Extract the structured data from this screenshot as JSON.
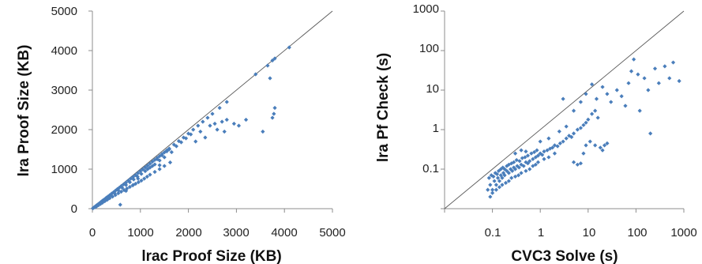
{
  "colors": {
    "marker": "#4a7ebb",
    "axis": "#8c8c8c",
    "diagonal": "#595959",
    "text": "#222222"
  },
  "chart_data": [
    {
      "type": "scatter",
      "xlabel": "lrac Proof Size (KB)",
      "ylabel": "lra Proof Size (KB)",
      "xlim": [
        0,
        5000
      ],
      "ylim": [
        0,
        5000
      ],
      "x_ticks": [
        "0",
        "1000",
        "2000",
        "3000",
        "4000",
        "5000"
      ],
      "y_ticks": [
        "0",
        "1000",
        "2000",
        "3000",
        "4000",
        "5000"
      ],
      "scale": "linear",
      "grid": false,
      "legend": "none",
      "reference_line": "y = x",
      "points": [
        [
          10,
          10
        ],
        [
          25,
          22
        ],
        [
          40,
          38
        ],
        [
          55,
          50
        ],
        [
          70,
          65
        ],
        [
          85,
          80
        ],
        [
          100,
          95
        ],
        [
          120,
          112
        ],
        [
          140,
          130
        ],
        [
          160,
          150
        ],
        [
          180,
          170
        ],
        [
          200,
          190
        ],
        [
          220,
          210
        ],
        [
          250,
          235
        ],
        [
          280,
          265
        ],
        [
          300,
          285
        ],
        [
          330,
          310
        ],
        [
          360,
          340
        ],
        [
          400,
          380
        ],
        [
          440,
          415
        ],
        [
          480,
          455
        ],
        [
          520,
          495
        ],
        [
          560,
          530
        ],
        [
          600,
          570
        ],
        [
          650,
          615
        ],
        [
          700,
          660
        ],
        [
          750,
          710
        ],
        [
          800,
          760
        ],
        [
          850,
          805
        ],
        [
          900,
          850
        ],
        [
          950,
          900
        ],
        [
          1000,
          950
        ],
        [
          1050,
          995
        ],
        [
          1100,
          1045
        ],
        [
          1150,
          1090
        ],
        [
          1200,
          1140
        ],
        [
          1250,
          1190
        ],
        [
          1300,
          1235
        ],
        [
          1350,
          1285
        ],
        [
          1400,
          1330
        ],
        [
          1450,
          1380
        ],
        [
          1500,
          1425
        ],
        [
          1550,
          1475
        ],
        [
          1600,
          1520
        ],
        [
          1700,
          1620
        ],
        [
          1800,
          1710
        ],
        [
          1900,
          1800
        ],
        [
          2000,
          1900
        ],
        [
          2100,
          2000
        ],
        [
          2200,
          2100
        ],
        [
          2300,
          2200
        ],
        [
          2400,
          2300
        ],
        [
          2500,
          2400
        ],
        [
          2650,
          2550
        ],
        [
          2800,
          2700
        ],
        [
          3400,
          3400
        ],
        [
          3650,
          3620
        ],
        [
          3750,
          3750
        ],
        [
          3800,
          3800
        ],
        [
          4100,
          4080
        ],
        [
          60,
          40
        ],
        [
          90,
          60
        ],
        [
          130,
          90
        ],
        [
          170,
          120
        ],
        [
          210,
          150
        ],
        [
          260,
          190
        ],
        [
          310,
          225
        ],
        [
          360,
          265
        ],
        [
          420,
          305
        ],
        [
          480,
          345
        ],
        [
          540,
          390
        ],
        [
          600,
          430
        ],
        [
          660,
          470
        ],
        [
          720,
          510
        ],
        [
          780,
          550
        ],
        [
          840,
          590
        ],
        [
          900,
          630
        ],
        [
          960,
          670
        ],
        [
          1020,
          710
        ],
        [
          1080,
          760
        ],
        [
          1140,
          810
        ],
        [
          1200,
          860
        ],
        [
          1300,
          930
        ],
        [
          1400,
          1000
        ],
        [
          1500,
          1080
        ],
        [
          1620,
          1170
        ],
        [
          80,
          70
        ],
        [
          130,
          115
        ],
        [
          190,
          165
        ],
        [
          250,
          215
        ],
        [
          320,
          275
        ],
        [
          390,
          335
        ],
        [
          460,
          395
        ],
        [
          540,
          460
        ],
        [
          620,
          530
        ],
        [
          700,
          600
        ],
        [
          780,
          670
        ],
        [
          860,
          740
        ],
        [
          940,
          810
        ],
        [
          1020,
          880
        ],
        [
          1100,
          950
        ],
        [
          1200,
          1040
        ],
        [
          1300,
          1120
        ],
        [
          1400,
          1220
        ],
        [
          1500,
          1300
        ],
        [
          1650,
          1430
        ],
        [
          1750,
          1580
        ],
        [
          1850,
          1680
        ],
        [
          1950,
          1780
        ],
        [
          2050,
          1880
        ],
        [
          2150,
          1700
        ],
        [
          2250,
          1950
        ],
        [
          2350,
          1800
        ],
        [
          2450,
          2100
        ],
        [
          2550,
          2150
        ],
        [
          2700,
          2200
        ],
        [
          2800,
          2250
        ],
        [
          2950,
          2150
        ],
        [
          3050,
          2100
        ],
        [
          3200,
          2250
        ],
        [
          3550,
          1950
        ],
        [
          3700,
          3300
        ],
        [
          3750,
          2300
        ],
        [
          3780,
          2400
        ],
        [
          3800,
          2550
        ],
        [
          2600,
          2000
        ],
        [
          2750,
          1950
        ],
        [
          1550,
          1450
        ],
        [
          1600,
          1500
        ],
        [
          1450,
          1350
        ],
        [
          1400,
          1100
        ],
        [
          1350,
          1250
        ],
        [
          580,
          100
        ],
        [
          700,
          450
        ],
        [
          850,
          600
        ],
        [
          950,
          760
        ],
        [
          1150,
          1000
        ],
        [
          1250,
          1080
        ]
      ]
    },
    {
      "type": "scatter",
      "xlabel": "CVC3 Solve (s)",
      "ylabel": "lra Pf Check (s)",
      "xlim": [
        0.01,
        1000
      ],
      "ylim": [
        0.01,
        1000
      ],
      "x_ticks": [
        "0.1",
        "1",
        "10",
        "100",
        "1000"
      ],
      "y_ticks": [
        "0.1",
        "1",
        "10",
        "100",
        "1000"
      ],
      "scale": "log",
      "grid": false,
      "legend": "none",
      "reference_line": "y = x",
      "points": [
        [
          0.08,
          0.03
        ],
        [
          0.09,
          0.04
        ],
        [
          0.1,
          0.03
        ],
        [
          0.11,
          0.05
        ],
        [
          0.12,
          0.04
        ],
        [
          0.13,
          0.06
        ],
        [
          0.14,
          0.05
        ],
        [
          0.15,
          0.07
        ],
        [
          0.16,
          0.06
        ],
        [
          0.17,
          0.08
        ],
        [
          0.18,
          0.07
        ],
        [
          0.2,
          0.09
        ],
        [
          0.22,
          0.08
        ],
        [
          0.24,
          0.1
        ],
        [
          0.26,
          0.09
        ],
        [
          0.28,
          0.11
        ],
        [
          0.3,
          0.1
        ],
        [
          0.33,
          0.12
        ],
        [
          0.36,
          0.11
        ],
        [
          0.4,
          0.13
        ],
        [
          0.45,
          0.12
        ],
        [
          0.5,
          0.15
        ],
        [
          0.55,
          0.14
        ],
        [
          0.6,
          0.16
        ],
        [
          0.7,
          0.18
        ],
        [
          0.8,
          0.2
        ],
        [
          0.9,
          0.22
        ],
        [
          1.0,
          0.25
        ],
        [
          1.1,
          0.23
        ],
        [
          1.2,
          0.28
        ],
        [
          1.4,
          0.3
        ],
        [
          1.6,
          0.33
        ],
        [
          1.8,
          0.35
        ],
        [
          2.0,
          0.4
        ],
        [
          2.3,
          0.38
        ],
        [
          2.6,
          0.45
        ],
        [
          3.0,
          0.5
        ],
        [
          3.5,
          0.6
        ],
        [
          4.0,
          0.7
        ],
        [
          4.5,
          0.65
        ],
        [
          5.0,
          0.8
        ],
        [
          6.0,
          1.0
        ],
        [
          7.0,
          1.1
        ],
        [
          8.0,
          1.3
        ],
        [
          9.0,
          1.5
        ],
        [
          10,
          1.8
        ],
        [
          12,
          2.5
        ],
        [
          14,
          3.0
        ],
        [
          16,
          2.0
        ],
        [
          0.085,
          0.06
        ],
        [
          0.095,
          0.07
        ],
        [
          0.105,
          0.065
        ],
        [
          0.115,
          0.08
        ],
        [
          0.125,
          0.075
        ],
        [
          0.135,
          0.09
        ],
        [
          0.15,
          0.1
        ],
        [
          0.165,
          0.11
        ],
        [
          0.18,
          0.1
        ],
        [
          0.2,
          0.12
        ],
        [
          0.22,
          0.13
        ],
        [
          0.25,
          0.14
        ],
        [
          0.28,
          0.15
        ],
        [
          0.32,
          0.17
        ],
        [
          0.37,
          0.16
        ],
        [
          0.42,
          0.19
        ],
        [
          0.48,
          0.2
        ],
        [
          0.55,
          0.22
        ],
        [
          0.65,
          0.25
        ],
        [
          0.75,
          0.27
        ],
        [
          0.85,
          0.3
        ],
        [
          0.09,
          0.02
        ],
        [
          0.1,
          0.025
        ],
        [
          0.12,
          0.03
        ],
        [
          0.14,
          0.035
        ],
        [
          0.16,
          0.04
        ],
        [
          0.19,
          0.045
        ],
        [
          0.22,
          0.05
        ],
        [
          0.25,
          0.06
        ],
        [
          0.3,
          0.065
        ],
        [
          0.35,
          0.07
        ],
        [
          0.4,
          0.08
        ],
        [
          0.5,
          0.09
        ],
        [
          0.6,
          0.1
        ],
        [
          0.7,
          0.12
        ],
        [
          0.8,
          0.13
        ],
        [
          0.9,
          0.15
        ],
        [
          1.2,
          0.18
        ],
        [
          1.5,
          0.2
        ],
        [
          2.0,
          0.25
        ],
        [
          0.3,
          0.25
        ],
        [
          0.4,
          0.3
        ],
        [
          0.5,
          0.28
        ],
        [
          1.0,
          0.5
        ],
        [
          1.5,
          0.6
        ],
        [
          2.5,
          0.9
        ],
        [
          3.5,
          1.2
        ],
        [
          5,
          0.15
        ],
        [
          6,
          0.13
        ],
        [
          7,
          0.14
        ],
        [
          8,
          0.25
        ],
        [
          9,
          0.4
        ],
        [
          11,
          0.5
        ],
        [
          14,
          0.4
        ],
        [
          18,
          0.35
        ],
        [
          20,
          0.3
        ],
        [
          22,
          0.4
        ],
        [
          25,
          0.45
        ],
        [
          3,
          6
        ],
        [
          5,
          3
        ],
        [
          7,
          5
        ],
        [
          9,
          8
        ],
        [
          12,
          14
        ],
        [
          15,
          6
        ],
        [
          20,
          12
        ],
        [
          25,
          8
        ],
        [
          30,
          5
        ],
        [
          40,
          10
        ],
        [
          50,
          7
        ],
        [
          60,
          4
        ],
        [
          70,
          15
        ],
        [
          80,
          30
        ],
        [
          90,
          60
        ],
        [
          110,
          25
        ],
        [
          120,
          3
        ],
        [
          150,
          20
        ],
        [
          180,
          10
        ],
        [
          200,
          0.8
        ],
        [
          250,
          35
        ],
        [
          300,
          15
        ],
        [
          400,
          40
        ],
        [
          500,
          20
        ],
        [
          600,
          50
        ],
        [
          800,
          17
        ]
      ]
    }
  ]
}
